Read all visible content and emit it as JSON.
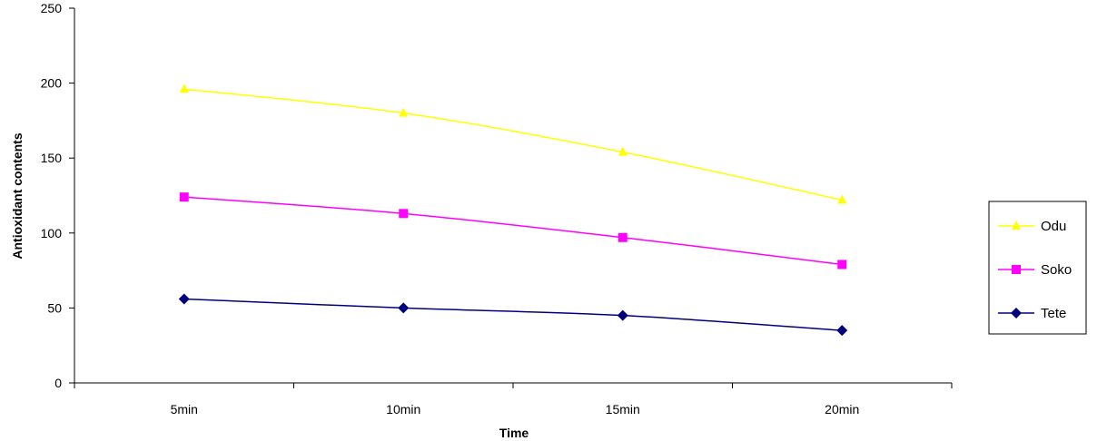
{
  "chart_data": {
    "type": "line",
    "title": "",
    "xlabel": "Time",
    "ylabel": "Antioxidant contents",
    "categories": [
      "5min",
      "10min",
      "15min",
      "20min"
    ],
    "ylim": [
      0,
      250
    ],
    "yticks": [
      0,
      50,
      100,
      150,
      200,
      250
    ],
    "grid": false,
    "legend_position": "right",
    "series": [
      {
        "name": "Odu",
        "values": [
          196,
          180,
          154,
          122
        ],
        "color": "#ffff00",
        "marker": "triangle"
      },
      {
        "name": "Soko",
        "values": [
          124,
          113,
          97,
          79
        ],
        "color": "#ff00ff",
        "marker": "square"
      },
      {
        "name": "Tete",
        "values": [
          56,
          50,
          45,
          35
        ],
        "color": "#000080",
        "marker": "diamond"
      }
    ]
  }
}
